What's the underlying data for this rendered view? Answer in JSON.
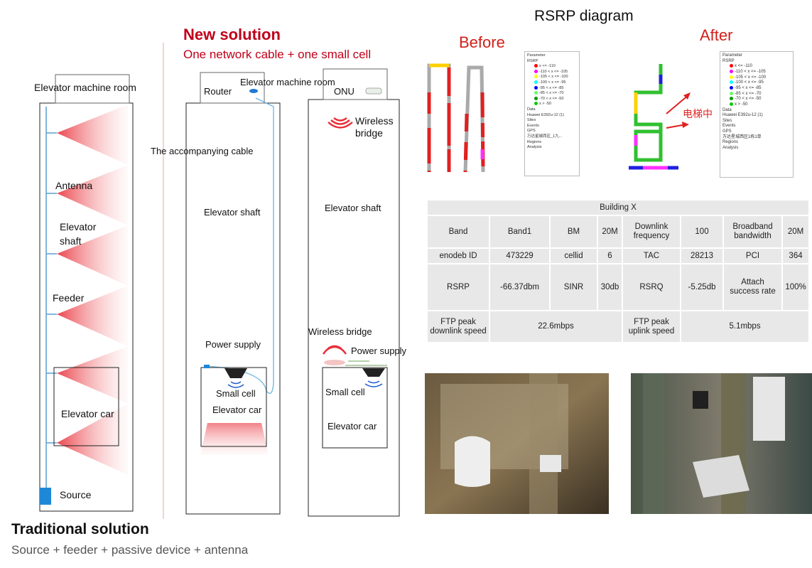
{
  "traditional": {
    "title": "Traditional solution",
    "subtitle": "Source + feeder + passive device + antenna",
    "machine_room": "Elevator machine room",
    "antenna": "Antenna",
    "shaft": "Elevator shaft",
    "feeder": "Feeder",
    "car": "Elevator car",
    "source": "Source"
  },
  "new_solution": {
    "title": "New solution",
    "subtitle": "One network cable + one small cell",
    "wired": {
      "router": "Router",
      "machine_room": "Elevator machine room",
      "cable": "The accompanying cable",
      "shaft": "Elevator shaft",
      "power": "Power supply",
      "small_cell": "Small cell",
      "car": "Elevator car"
    },
    "wireless": {
      "onu": "ONU",
      "bridge_top": "Wireless bridge",
      "shaft": "Elevator shaft",
      "bridge_bottom": "Wireless bridge",
      "power": "Power supply",
      "small_cell": "Small cell",
      "car": "Elevator car"
    }
  },
  "rsrp": {
    "title": "RSRP diagram",
    "before": "Before",
    "after": "After",
    "annotation": "电梯中",
    "legend_colors": [
      "#ff0000",
      "#ff00ff",
      "#ffff00",
      "#00ffff",
      "#0000ff",
      "#66ff66",
      "#009900",
      "#00cc00"
    ],
    "before_legend": {
      "parameter": "Parameter",
      "rsrp": "RSRP",
      "ranges": [
        "x <= -110",
        "-110 < x <= -105",
        "-105 < x <= -100",
        "-100 < x <= -95",
        "-95 < x <= -85",
        "-85 < x <= -70",
        "-70 < x <= -50",
        "x > -50"
      ],
      "items": [
        "Data",
        "Huawei E392u-12 (1)",
        "Sites",
        "Events",
        "GPS",
        "万达星城西区_1九...",
        "Regions",
        "Analysis"
      ]
    },
    "after_legend": {
      "parameter": "Parameter",
      "rsrp": "RSRP",
      "ranges": [
        "x <= -110",
        "-110 < x <= -105",
        "-105 < x <= -100",
        "-100 < x <= -95",
        "-95 < x <= -85",
        "-85 < x <= -70",
        "-70 < x <= -50",
        "x > -50"
      ],
      "items": [
        "Data",
        "Huawei E392u-12 (1)",
        "Sites",
        "Events",
        "GPS",
        "万达星城西区1栋1单",
        "Regions",
        "Analysis"
      ]
    }
  },
  "table": {
    "title": "Building X",
    "rows": [
      [
        "Band",
        "Band1",
        "BM",
        "20M",
        "Downlink frequency",
        "100",
        "Broadband bandwidth",
        "20M"
      ],
      [
        "enodeb ID",
        "473229",
        "cellid",
        "6",
        "TAC",
        "28213",
        "PCI",
        "364"
      ],
      [
        "RSRP",
        "-66.37dbm",
        "SINR",
        "30db",
        "RSRQ",
        "-5.25db",
        "Attach success rate",
        "100%"
      ],
      [
        "FTP peak downlink speed",
        "22.6mbps",
        "FTP peak uplink speed",
        "5.1mbps"
      ]
    ]
  }
}
